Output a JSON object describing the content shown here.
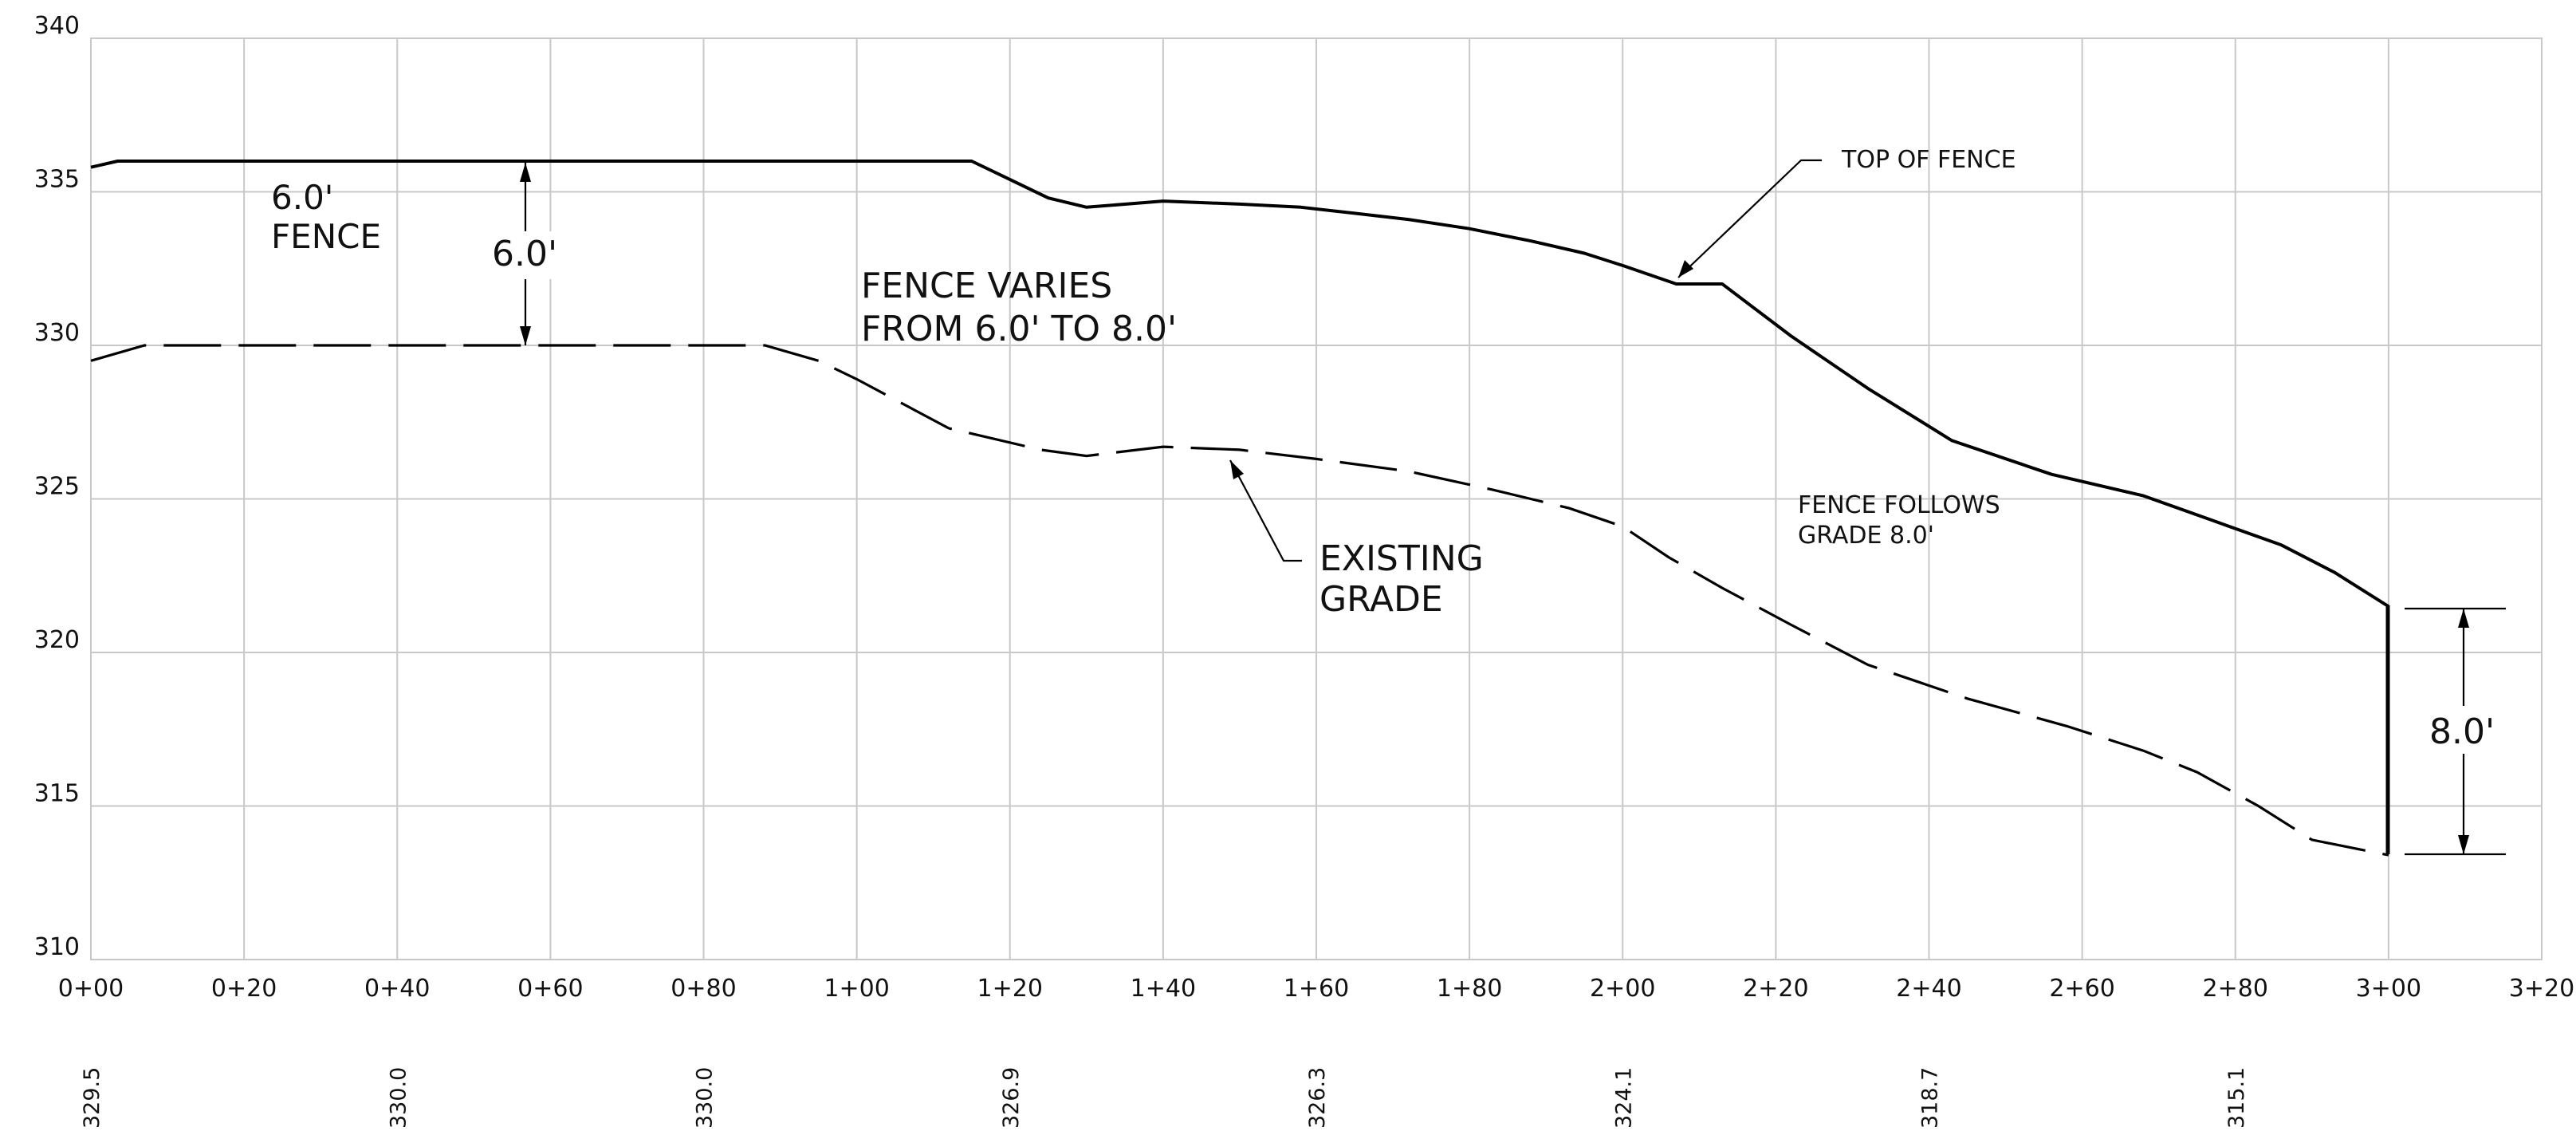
{
  "chart_data": {
    "type": "line",
    "xlim": [
      0,
      320
    ],
    "ylim": [
      310,
      340
    ],
    "x_ticks": [
      {
        "v": 0,
        "label": "0+00"
      },
      {
        "v": 20,
        "label": "0+20"
      },
      {
        "v": 40,
        "label": "0+40"
      },
      {
        "v": 60,
        "label": "0+60"
      },
      {
        "v": 80,
        "label": "0+80"
      },
      {
        "v": 100,
        "label": "1+00"
      },
      {
        "v": 120,
        "label": "1+20"
      },
      {
        "v": 140,
        "label": "1+40"
      },
      {
        "v": 160,
        "label": "1+60"
      },
      {
        "v": 180,
        "label": "1+80"
      },
      {
        "v": 200,
        "label": "2+00"
      },
      {
        "v": 220,
        "label": "2+20"
      },
      {
        "v": 240,
        "label": "2+40"
      },
      {
        "v": 260,
        "label": "2+60"
      },
      {
        "v": 280,
        "label": "2+80"
      },
      {
        "v": 300,
        "label": "3+00"
      },
      {
        "v": 320,
        "label": "3+20"
      }
    ],
    "y_ticks": [
      {
        "v": 310,
        "label": "310"
      },
      {
        "v": 315,
        "label": "315"
      },
      {
        "v": 320,
        "label": "320"
      },
      {
        "v": 325,
        "label": "325"
      },
      {
        "v": 330,
        "label": "330"
      },
      {
        "v": 335,
        "label": "335"
      },
      {
        "v": 340,
        "label": "340"
      }
    ],
    "series": [
      {
        "style": "solid",
        "points": [
          [
            0,
            335.8
          ],
          [
            3.5,
            336
          ],
          [
            115,
            336
          ],
          [
            120,
            335.4
          ],
          [
            125,
            334.8
          ],
          [
            130,
            334.5
          ],
          [
            140,
            334.7
          ],
          [
            150,
            334.6
          ],
          [
            158,
            334.5
          ],
          [
            165,
            334.3
          ],
          [
            172,
            334.1
          ],
          [
            180,
            333.8
          ],
          [
            188,
            333.4
          ],
          [
            195,
            333.0
          ],
          [
            200,
            332.6
          ],
          [
            207,
            332.0
          ],
          [
            213,
            332.0
          ],
          [
            222,
            330.3
          ],
          [
            232,
            328.6
          ],
          [
            243,
            326.9
          ],
          [
            256,
            325.8
          ],
          [
            268,
            325.1
          ],
          [
            277,
            324.3
          ],
          [
            286,
            323.5
          ],
          [
            293,
            322.6
          ],
          [
            300,
            321.5
          ]
        ]
      },
      {
        "style": "dashed",
        "points": [
          [
            0,
            329.5
          ],
          [
            7,
            330
          ],
          [
            88,
            330
          ],
          [
            95,
            329.5
          ],
          [
            100,
            328.9
          ],
          [
            112,
            327.3
          ],
          [
            124,
            326.6
          ],
          [
            130,
            326.4
          ],
          [
            140,
            326.7
          ],
          [
            150,
            326.6
          ],
          [
            160,
            326.3
          ],
          [
            172,
            325.9
          ],
          [
            183,
            325.3
          ],
          [
            193,
            324.7
          ],
          [
            200,
            324.1
          ],
          [
            206,
            323.1
          ],
          [
            213,
            322.1
          ],
          [
            222,
            320.9
          ],
          [
            232,
            319.6
          ],
          [
            245,
            318.5
          ],
          [
            258,
            317.6
          ],
          [
            268,
            316.8
          ],
          [
            275,
            316.1
          ],
          [
            283,
            315.0
          ],
          [
            290,
            313.9
          ],
          [
            300,
            313.4
          ]
        ]
      }
    ],
    "elevation_row": [
      {
        "x": 0,
        "label": "329.5"
      },
      {
        "x": 40,
        "label": "330.0"
      },
      {
        "x": 80,
        "label": "330.0"
      },
      {
        "x": 120,
        "label": "326.9"
      },
      {
        "x": 160,
        "label": "326.3"
      },
      {
        "x": 200,
        "label": "324.1"
      },
      {
        "x": 240,
        "label": "318.7"
      },
      {
        "x": 280,
        "label": "315.1"
      }
    ],
    "annotations": {
      "fence_6ft_line1": "6.0'",
      "fence_6ft_line2": "FENCE",
      "dim_6ft": "6.0'",
      "fence_varies_line1": "FENCE VARIES",
      "fence_varies_line2": "FROM 6.0' TO 8.0'",
      "top_of_fence": "TOP OF FENCE",
      "existing_grade_line1": "EXISTING",
      "existing_grade_line2": "GRADE",
      "fence_follows_line1": "FENCE FOLLOWS",
      "fence_follows_line2": "GRADE 8.0'",
      "dim_8ft": "8.0'"
    }
  }
}
